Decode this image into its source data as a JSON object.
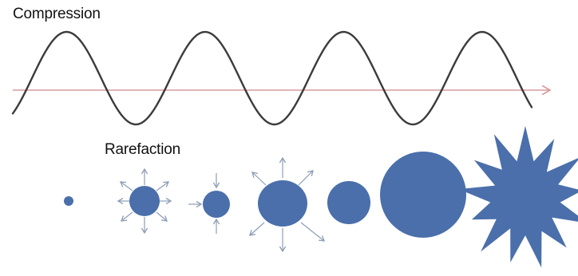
{
  "labels": {
    "compression": "Compression",
    "rarefaction": "Rarefaction"
  },
  "colors": {
    "wave": "#3b3b3b",
    "axis": "#d99a9a",
    "bubble": "#4a6fab",
    "arrow": "#8d9db6"
  }
}
